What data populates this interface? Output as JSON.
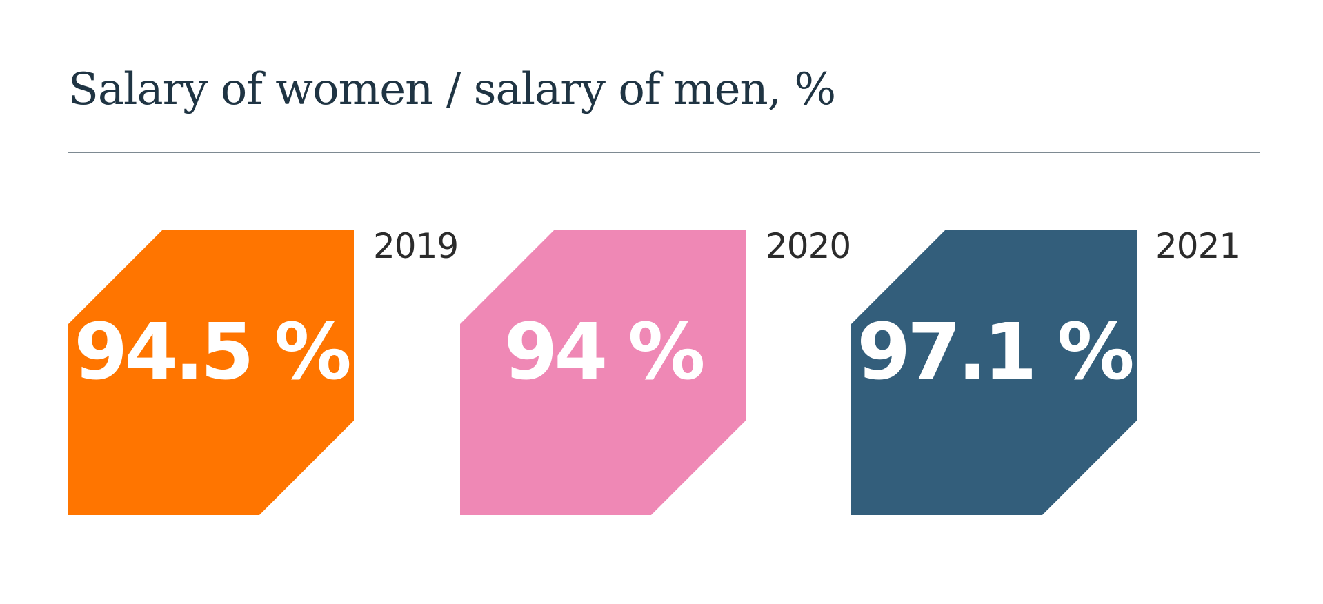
{
  "chart_data": {
    "type": "bar",
    "title": "Salary of women / salary of men, %",
    "categories": [
      "2019",
      "2020",
      "2021"
    ],
    "values": [
      94.5,
      94,
      97.1
    ],
    "value_labels": [
      "94.5 %",
      "94 %",
      "97.1 %"
    ],
    "colors": [
      "#ff7500",
      "#ef88b5",
      "#335e7b"
    ],
    "text_color": "#ffffff",
    "title_color": "#1f3443"
  }
}
